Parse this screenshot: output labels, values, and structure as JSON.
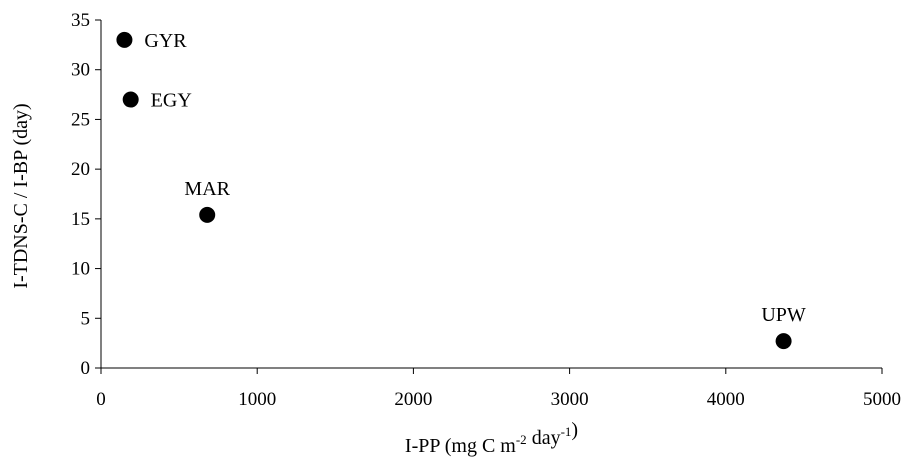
{
  "chart_data": {
    "type": "scatter",
    "title": "",
    "xlabel": {
      "parts": [
        {
          "text": "I-PP (mg C m",
          "sup": false
        },
        {
          "text": "-2",
          "sup": true
        },
        {
          "text": " day",
          "sup": false
        },
        {
          "text": "-1",
          "sup": true
        },
        {
          "text": ")",
          "sup": false
        }
      ]
    },
    "ylabel": "I-TDNS-C / I-BP (day)",
    "xlim": [
      0,
      5000
    ],
    "ylim": [
      0,
      35
    ],
    "xticks": [
      0,
      1000,
      2000,
      3000,
      4000,
      5000
    ],
    "yticks": [
      0,
      5,
      10,
      15,
      20,
      25,
      30,
      35
    ],
    "grid": false,
    "legend": "none",
    "marker_color": "#000000",
    "points": [
      {
        "label": "GYR",
        "x": 150,
        "y": 33.0,
        "label_pos": "right"
      },
      {
        "label": "EGY",
        "x": 190,
        "y": 27.0,
        "label_pos": "right"
      },
      {
        "label": "MAR",
        "x": 680,
        "y": 15.4,
        "label_pos": "above"
      },
      {
        "label": "UPW",
        "x": 4370,
        "y": 2.7,
        "label_pos": "above"
      }
    ]
  }
}
